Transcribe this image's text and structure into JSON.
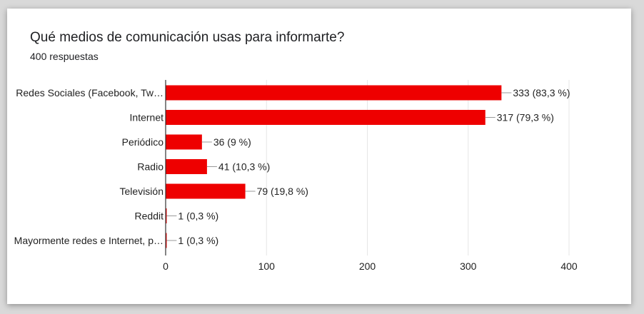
{
  "title": "Qué medios de comunicación usas para informarte?",
  "subtitle": "400 respuestas",
  "colors": {
    "bar": "#ee0000",
    "grid": "#e5e5e5",
    "axis": "#333333",
    "text": "#222222",
    "connector": "#999999"
  },
  "chart_data": {
    "type": "bar",
    "orientation": "horizontal",
    "title": "Qué medios de comunicación usas para informarte?",
    "xlabel": "",
    "ylabel": "",
    "xlim": [
      0,
      400
    ],
    "xticks": [
      "0",
      "100",
      "200",
      "300",
      "400"
    ],
    "xtick_values": [
      0,
      100,
      200,
      300,
      400
    ],
    "grid": true,
    "categories": [
      "Redes Sociales (Facebook, Tw…",
      "Internet",
      "Periódico",
      "Radio",
      "Televisión",
      "Reddit",
      "Mayormente redes e Internet, p…"
    ],
    "values": [
      333,
      317,
      36,
      41,
      79,
      1,
      1
    ],
    "data_labels": [
      "333 (83,3 %)",
      "317 (79,3 %)",
      "36 (9 %)",
      "41 (10,3 %)",
      "79 (19,8 %)",
      "1 (0,3 %)",
      "1 (0,3 %)"
    ]
  }
}
